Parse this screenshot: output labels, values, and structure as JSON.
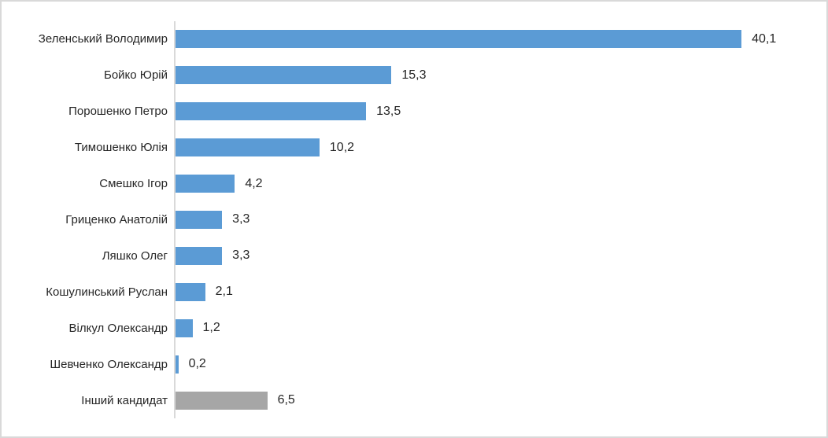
{
  "chart_data": {
    "type": "bar",
    "orientation": "horizontal",
    "title": "",
    "xlabel": "",
    "ylabel": "",
    "categories": [
      "Зеленський Володимир",
      "Бойко Юрій",
      "Порошенко Петро",
      "Тимошенко Юлія",
      "Смешко Ігор",
      "Гриценко Анатолій",
      "Ляшко Олег",
      "Кошулинський Руслан",
      "Вілкул Олександр",
      "Шевченко Олександр",
      "Інший кандидат"
    ],
    "values": [
      40.1,
      15.3,
      13.5,
      10.2,
      4.2,
      3.3,
      3.3,
      2.1,
      1.2,
      0.2,
      6.5
    ],
    "value_labels": [
      "40,1",
      "15,3",
      "13,5",
      "10,2",
      "4,2",
      "3,3",
      "3,3",
      "2,1",
      "1,2",
      "0,2",
      "6,5"
    ],
    "bar_colors": [
      "#5B9BD5",
      "#5B9BD5",
      "#5B9BD5",
      "#5B9BD5",
      "#5B9BD5",
      "#5B9BD5",
      "#5B9BD5",
      "#5B9BD5",
      "#5B9BD5",
      "#5B9BD5",
      "#A6A6A6"
    ],
    "xlim": [
      0,
      45
    ],
    "grid": false,
    "legend": false,
    "data_labels": true,
    "decimal_separator": ","
  },
  "colors": {
    "primary_bar": "#5B9BD5",
    "other_candidate_bar": "#A6A6A6",
    "axis_line": "#D9D9D9",
    "frame_border": "#D9D9D9",
    "text": "#262626",
    "background": "#FFFFFF"
  }
}
